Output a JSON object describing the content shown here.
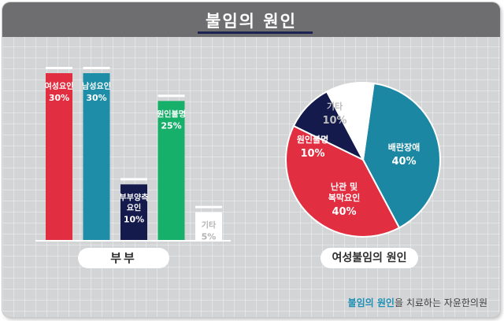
{
  "title": "불임의 원인",
  "footer": {
    "highlight": "불임의 원인",
    "rest": "을 치료하는 자윤한의원"
  },
  "chart_data": [
    {
      "type": "bar",
      "xlabel": "부부",
      "ylim": [
        0,
        30
      ],
      "categories": [
        "여성요인",
        "남성요인",
        "부부양측 요인",
        "원인불명",
        "기타"
      ],
      "category_lines": [
        [
          "여성요인"
        ],
        [
          "남성요인"
        ],
        [
          "부부양측",
          "요인"
        ],
        [
          "원인불명"
        ],
        [
          "기타"
        ]
      ],
      "values": [
        30,
        30,
        10,
        25,
        5
      ],
      "value_labels": [
        "30%",
        "30%",
        "10%",
        "25%",
        "5%"
      ],
      "colors": [
        "#e12f41",
        "#1e8ea8",
        "#141a4b",
        "#17b06a",
        "#ffffff"
      ],
      "text_colors": [
        "#ffffff",
        "#ffffff",
        "#ffffff",
        "#ffffff",
        "#b3b3b3"
      ]
    },
    {
      "type": "pie",
      "xlabel": "여성불임의 원인",
      "categories": [
        "배란장애",
        "난관 및 복막요인",
        "원인불명",
        "기타"
      ],
      "category_lines": [
        [
          "배란장애"
        ],
        [
          "난관 및",
          "복막요인"
        ],
        [
          "원인불명"
        ],
        [
          "기타"
        ]
      ],
      "values": [
        40,
        40,
        10,
        10
      ],
      "value_labels": [
        "40%",
        "40%",
        "10%",
        "10%"
      ],
      "colors": [
        "#1b87a3",
        "#e12f41",
        "#141a4b",
        "#ffffff"
      ],
      "text_colors": [
        "#ffffff",
        "#ffffff",
        "#ffffff",
        "#bdbdbd"
      ]
    }
  ]
}
